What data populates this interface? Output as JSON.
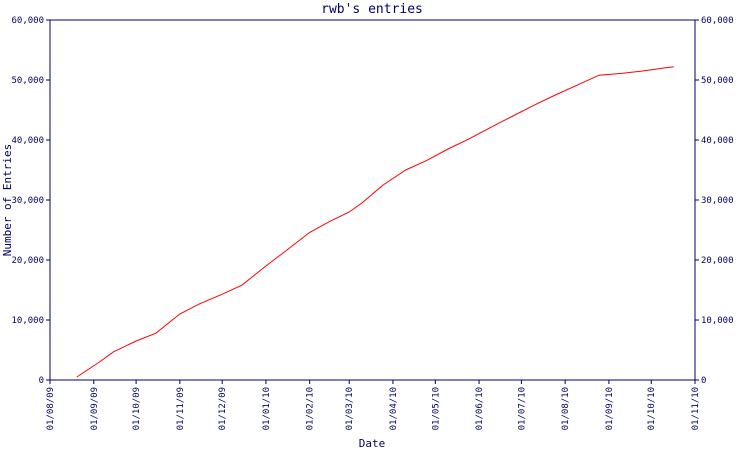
{
  "chart_data": {
    "type": "line",
    "title": "rwb's entries",
    "xlabel": "Date",
    "ylabel": "Number of Entries",
    "x_tick_labels": [
      "01/08/09",
      "01/09/09",
      "01/10/09",
      "01/11/09",
      "01/12/09",
      "01/01/10",
      "01/02/10",
      "01/03/10",
      "01/04/10",
      "01/05/10",
      "01/06/10",
      "01/07/10",
      "01/08/10",
      "01/09/10",
      "01/10/10",
      "01/11/10"
    ],
    "y_tick_labels": [
      "0",
      "10,000",
      "20,000",
      "30,000",
      "40,000",
      "50,000",
      "60,000"
    ],
    "xlim": [
      "2009-08-01",
      "2010-11-01"
    ],
    "ylim": [
      0,
      60000
    ],
    "grid": false,
    "right_axis": true,
    "colors": {
      "line": "#ff0000",
      "axis": "#000066",
      "text": "#000066"
    },
    "series": [
      {
        "x": [
          "2009-08-20",
          "2009-09-05",
          "2009-09-15",
          "2009-10-01",
          "2009-10-15",
          "2009-11-01",
          "2009-11-15",
          "2009-12-01",
          "2009-12-15",
          "2010-01-01",
          "2010-01-15",
          "2010-02-01",
          "2010-02-15",
          "2010-03-01",
          "2010-03-10",
          "2010-03-25",
          "2010-04-10",
          "2010-04-25",
          "2010-05-10",
          "2010-05-25",
          "2010-06-10",
          "2010-06-25",
          "2010-07-10",
          "2010-07-25",
          "2010-08-10",
          "2010-08-25",
          "2010-09-10",
          "2010-09-25",
          "2010-10-10",
          "2010-10-17"
        ],
        "y": [
          500,
          3000,
          4700,
          6500,
          7800,
          11000,
          12700,
          14300,
          15800,
          19000,
          21500,
          24600,
          26400,
          28000,
          29500,
          32500,
          35000,
          36600,
          38500,
          40200,
          42200,
          44000,
          45800,
          47500,
          49200,
          50800,
          51100,
          51500,
          52000,
          52200
        ]
      }
    ]
  }
}
